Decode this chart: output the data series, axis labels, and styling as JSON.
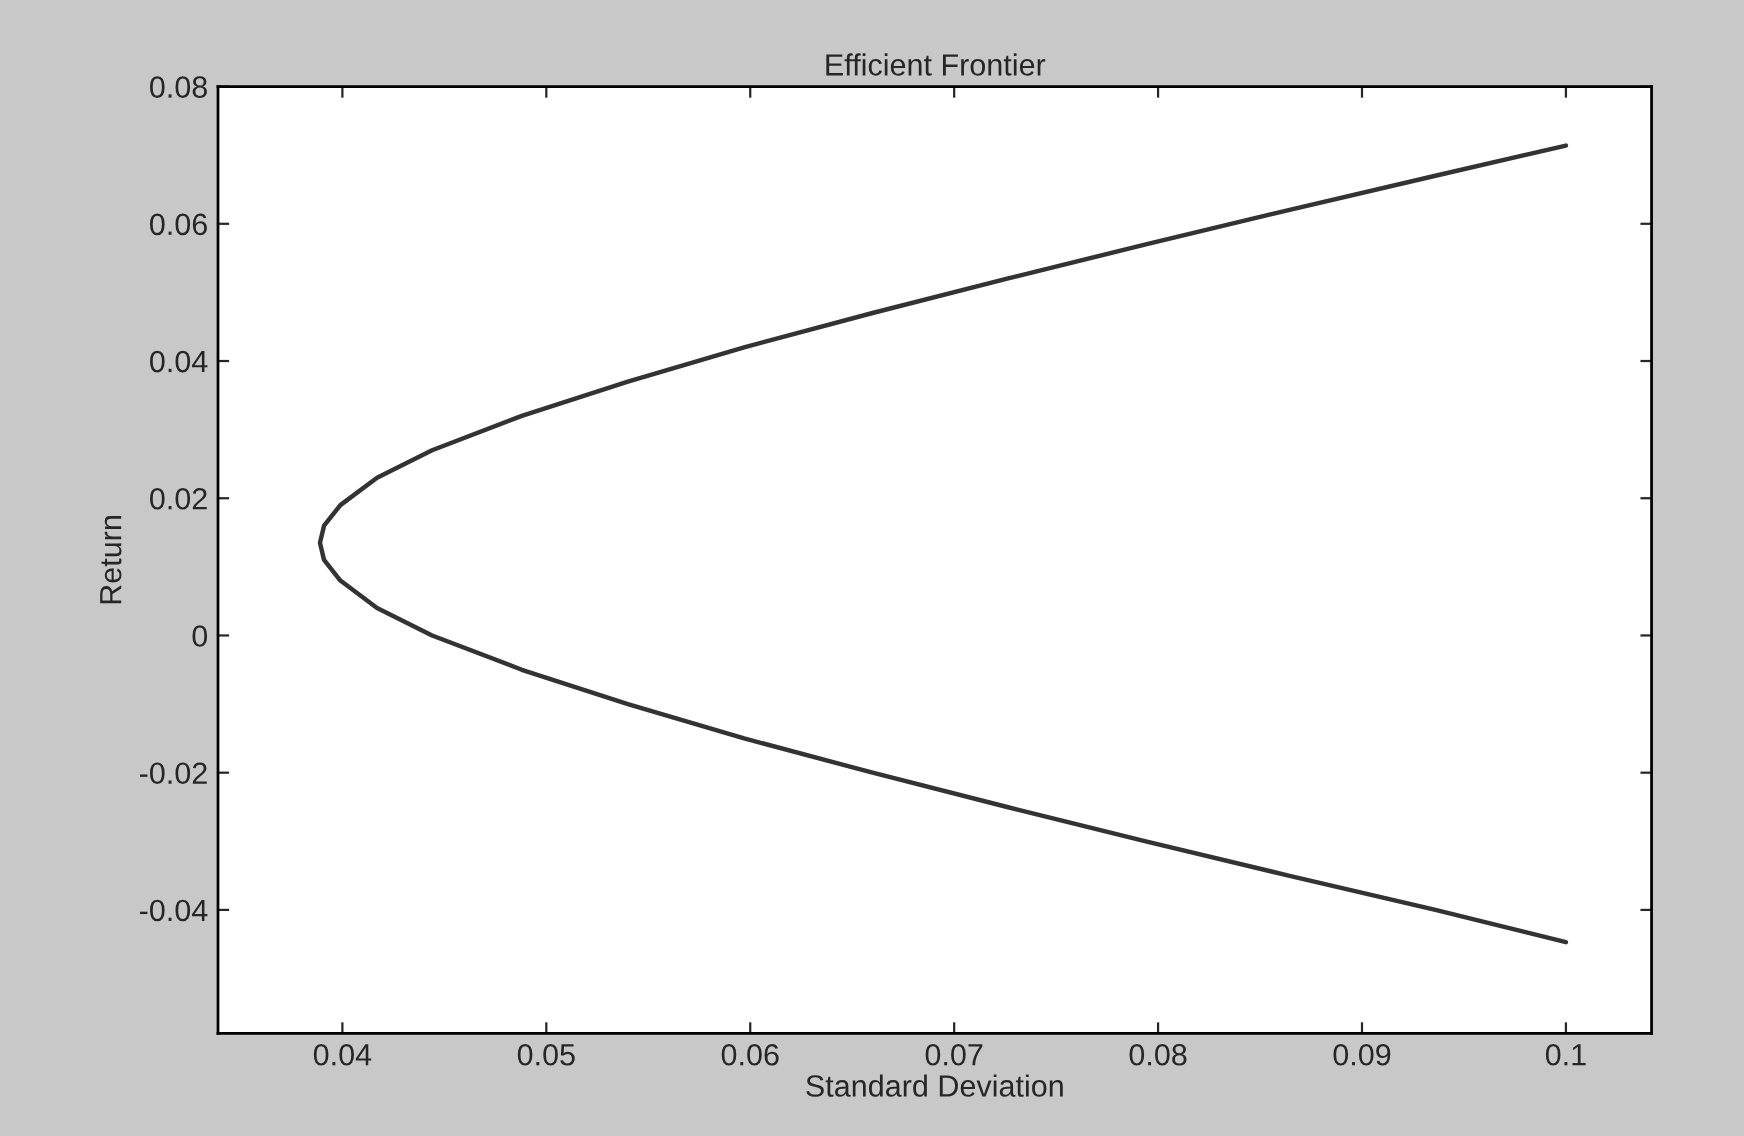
{
  "chart_data": {
    "type": "line",
    "title": "Efficient Frontier",
    "xlabel": "Standard Deviation",
    "ylabel": "Return",
    "series": [
      {
        "color": "#333333",
        "line_style": "solid",
        "x": [
          0.1,
          0.0936,
          0.0864,
          0.0794,
          0.0726,
          0.066,
          0.0597,
          0.054,
          0.0488,
          0.0444,
          0.0417,
          0.0399,
          0.0391,
          0.0389,
          0.0391,
          0.0399,
          0.0417,
          0.0444,
          0.0488,
          0.054,
          0.0597,
          0.066,
          0.0726,
          0.0794,
          0.0864,
          0.0936,
          0.1
        ],
        "values": [
          -0.0447,
          -0.04,
          -0.035,
          -0.03,
          -0.025,
          -0.02,
          -0.015,
          -0.01,
          -0.005,
          0,
          0.004,
          0.008,
          0.011,
          0.0135,
          0.016,
          0.019,
          0.023,
          0.027,
          0.032,
          0.037,
          0.042,
          0.047,
          0.052,
          0.057,
          0.062,
          0.067,
          0.0714
        ]
      }
    ],
    "xlim": [
      0.0339,
      0.1042
    ],
    "ylim": [
      -0.058,
      0.08
    ],
    "xticks": [
      0.04,
      0.05,
      0.06,
      0.07,
      0.08,
      0.09,
      0.1
    ],
    "yticks": [
      -0.04,
      -0.02,
      0,
      0.02,
      0.04,
      0.06,
      0.08
    ],
    "grid": false,
    "legend": false
  }
}
